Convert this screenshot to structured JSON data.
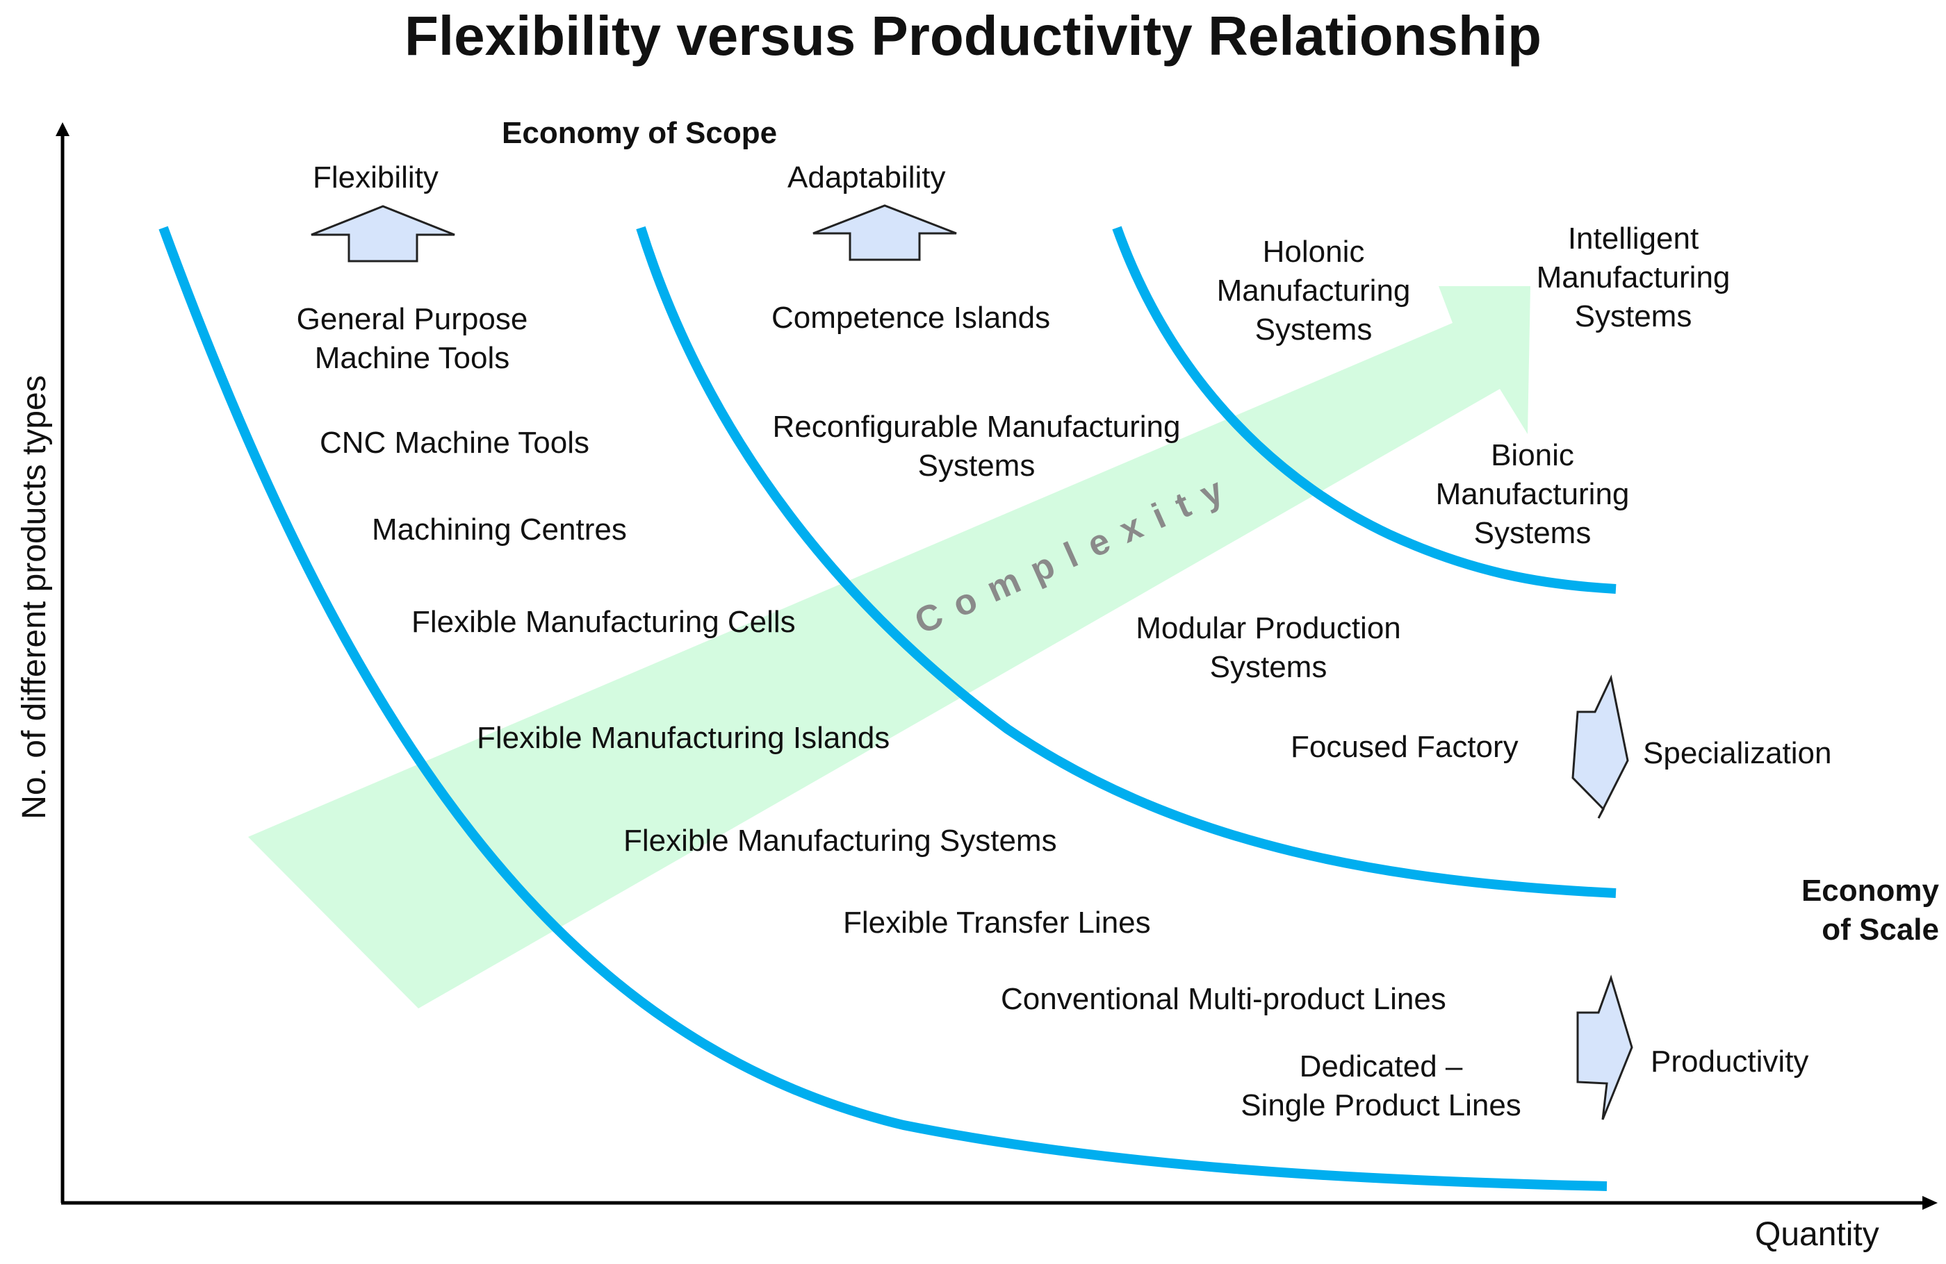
{
  "title": "Flexibility versus Productivity Relationship",
  "axes": {
    "x_label": "Quantity",
    "y_label": "No. of different products types"
  },
  "economy": {
    "scope": "Economy of Scope",
    "scale_line1": "Economy",
    "scale_line2": "of Scale"
  },
  "trends": {
    "flexibility": "Flexibility",
    "adaptability": "Adaptability",
    "specialization": "Specialization",
    "productivity": "Productivity",
    "complexity": "Complexity"
  },
  "systems": {
    "general_purpose_line1": "General Purpose",
    "general_purpose_line2": "Machine Tools",
    "cnc": "CNC Machine Tools",
    "machining_centres": "Machining Centres",
    "fmc": "Flexible Manufacturing Cells",
    "fmi": "Flexible Manufacturing Islands",
    "fms": "Flexible Manufacturing Systems",
    "ftl": "Flexible Transfer Lines",
    "conventional": "Conventional Multi-product Lines",
    "dedicated_line1": "Dedicated –",
    "dedicated_line2": "Single Product Lines",
    "competence": "Competence Islands",
    "rms_line1": "Reconfigurable Manufacturing",
    "rms_line2": "Systems",
    "modular_line1": "Modular Production",
    "modular_line2": "Systems",
    "focused": "Focused Factory",
    "holonic_line1": "Holonic",
    "holonic_line2": "Manufacturing",
    "holonic_line3": "Systems",
    "intelligent_line1": "Intelligent",
    "intelligent_line2": "Manufacturing",
    "intelligent_line3": "Systems",
    "bionic_line1": "Bionic",
    "bionic_line2": "Manufacturing",
    "bionic_line3": "Systems"
  },
  "colors": {
    "curve": "#00aeef",
    "complexity_arrow": "#d4fbe0",
    "block_arrow_fill": "#d6e4fb",
    "axis": "#000000",
    "complexity_text": "#8a8a8a"
  }
}
